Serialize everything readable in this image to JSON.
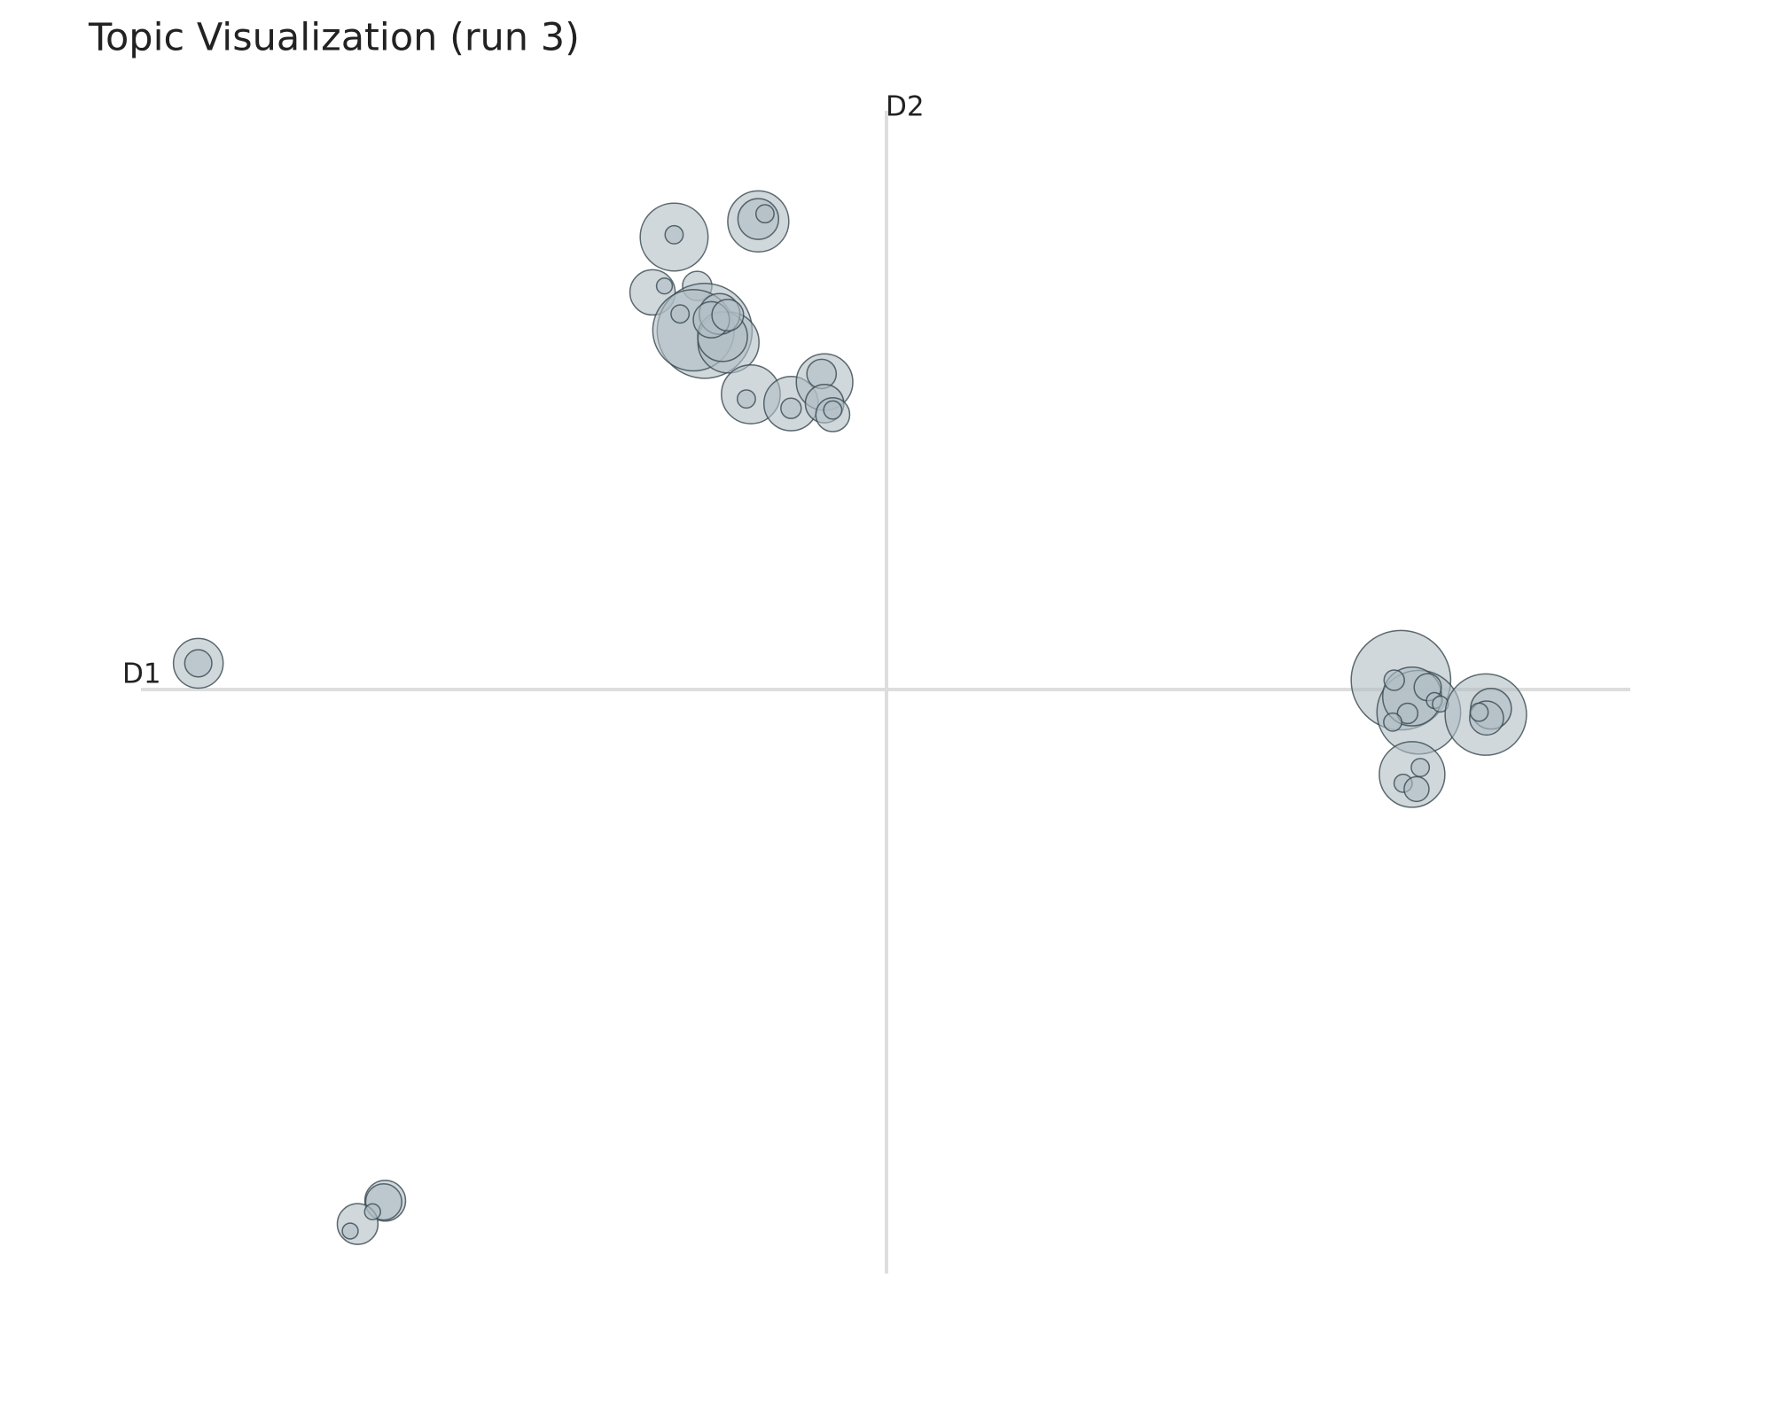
{
  "chart_data": {
    "type": "bubble",
    "title": "Topic Visualization (run 3)",
    "xlabel": "D1",
    "ylabel": "D2",
    "xlim": [
      -1,
      1
    ],
    "ylim": [
      -1,
      1
    ],
    "fill": "#b0bec5",
    "stroke": "#37474f",
    "x": [
      -0.284,
      -0.284,
      -0.171,
      -0.171,
      -0.162,
      -0.313,
      -0.297,
      -0.253,
      -0.243,
      -0.258,
      -0.276,
      -0.211,
      -0.219,
      -0.223,
      -0.234,
      -0.212,
      -0.181,
      -0.187,
      -0.127,
      -0.127,
      -0.082,
      -0.086,
      -0.082,
      -0.071,
      -0.071,
      -0.923,
      -0.923,
      -0.672,
      -0.674,
      -0.709,
      -0.719,
      -0.689,
      0.692,
      0.716,
      0.707,
      0.683,
      0.728,
      0.737,
      0.745,
      0.701,
      0.681,
      0.806,
      0.813,
      0.807,
      0.797,
      0.707,
      0.718,
      0.695,
      0.713
    ],
    "y": [
      0.777,
      0.781,
      0.804,
      0.808,
      0.817,
      0.682,
      0.693,
      0.693,
      0.616,
      0.617,
      0.645,
      0.596,
      0.606,
      0.645,
      0.635,
      0.643,
      0.507,
      0.499,
      0.491,
      0.483,
      0.528,
      0.542,
      0.491,
      0.472,
      0.48,
      0.045,
      0.045,
      -0.878,
      -0.88,
      -0.918,
      -0.93,
      -0.897,
      0.016,
      -0.039,
      -0.012,
      0.016,
      0.004,
      -0.019,
      -0.025,
      -0.041,
      -0.056,
      -0.043,
      -0.033,
      -0.049,
      -0.039,
      -0.146,
      -0.134,
      -0.161,
      -0.171
    ],
    "sizes": [
      30,
      8,
      27,
      18,
      8,
      20,
      7,
      13,
      42,
      36,
      8,
      27,
      22,
      18,
      16,
      14,
      26,
      8,
      24,
      9,
      25,
      13,
      17,
      15,
      8,
      22,
      12,
      18,
      16,
      18,
      7,
      7,
      44,
      37,
      26,
      9,
      12,
      7,
      7,
      9,
      8,
      36,
      18,
      15,
      8,
      29,
      8,
      8,
      11
    ]
  }
}
